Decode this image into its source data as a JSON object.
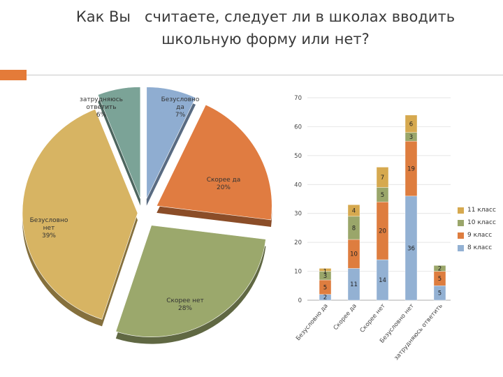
{
  "title": {
    "line1": "Как Вы   считаете, следует ли в школах вводить",
    "line2": "школьную форму или нет?"
  },
  "colors": {
    "accent": "#e47b39",
    "class11": "#d6a94f",
    "class10": "#9aa66a",
    "class9": "#de7d3f",
    "class8": "#93b1d3"
  },
  "chart_data": [
    {
      "type": "pie",
      "slices": [
        {
          "name": "Безусловно да",
          "value": 7,
          "label": "7%",
          "color": "#8fadd1"
        },
        {
          "name": "Скорее да",
          "value": 20,
          "label": "20%",
          "color": "#e07c41"
        },
        {
          "name": "Скорее нет",
          "value": 28,
          "label": "28%",
          "color": "#9ba86c"
        },
        {
          "name": "Безусловно нет",
          "value": 39,
          "label": "39%",
          "color": "#d7b463"
        },
        {
          "name": "затрудняюсь ответить",
          "value": 6,
          "label": "6%",
          "color": "#7ba397"
        }
      ],
      "labels": [
        {
          "lines": [
            "затрудняюсь",
            "ответить",
            "6%"
          ]
        },
        {
          "lines": [
            "Безусловно",
            "да",
            "7%"
          ]
        },
        {
          "lines": [
            "Скорее да",
            "20%"
          ]
        },
        {
          "lines": [
            "Безусловно",
            "нет",
            "39%"
          ]
        },
        {
          "lines": [
            "Скорее нет",
            "28%"
          ]
        }
      ]
    },
    {
      "type": "bar",
      "stacked": true,
      "categories": [
        "Безусловно да",
        "Скорее да",
        "Скорее нет",
        "Безусловно нет",
        "затрудняюсь ответить"
      ],
      "series": [
        {
          "name": "8 класс",
          "values": [
            2,
            11,
            14,
            36,
            5
          ],
          "color": "#93b1d3"
        },
        {
          "name": "9 класс",
          "values": [
            5,
            10,
            20,
            19,
            5
          ],
          "color": "#de7d3f"
        },
        {
          "name": "10 класс",
          "values": [
            3,
            8,
            5,
            3,
            2
          ],
          "color": "#9aa66a"
        },
        {
          "name": "11 класс",
          "values": [
            1,
            4,
            7,
            6,
            0
          ],
          "color": "#d6a94f"
        }
      ],
      "ylim": [
        0,
        70
      ],
      "yticks": [
        "0",
        "10",
        "20",
        "30",
        "40",
        "50",
        "60",
        "70"
      ],
      "legend": [
        {
          "label": "11 класс",
          "color": "#d6a94f"
        },
        {
          "label": "10 класс",
          "color": "#9aa66a"
        },
        {
          "label": "9 класс",
          "color": "#de7d3f"
        },
        {
          "label": "8 класс",
          "color": "#93b1d3"
        }
      ],
      "legend_position": "right"
    }
  ]
}
